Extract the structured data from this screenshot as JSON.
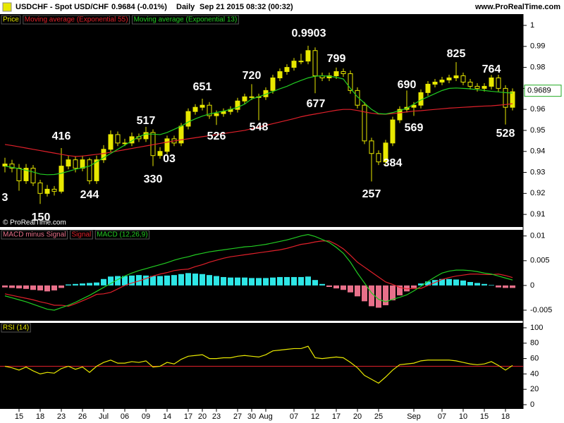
{
  "header": {
    "symbol": "USDCHF - Spot USD/CHF",
    "quote": "0.9684 (-0.01%)",
    "period": "Daily",
    "time": "Sep 21 2015 08:32 (00:32)",
    "site": "www.ProRealTime.com",
    "copyright": "© ProRealTime.com"
  },
  "chart_data": [
    {
      "type": "candlestick",
      "categories": [
        null,
        null,
        "15",
        null,
        null,
        "18",
        null,
        null,
        "23",
        null,
        null,
        "26",
        null,
        null,
        "Jul",
        null,
        null,
        "06",
        null,
        null,
        "09",
        null,
        null,
        "14",
        null,
        null,
        "17",
        null,
        "20",
        null,
        "23",
        null,
        null,
        "27",
        null,
        "30",
        null,
        "Aug",
        null,
        null,
        null,
        "07",
        null,
        null,
        "12",
        null,
        null,
        "17",
        null,
        null,
        "20",
        null,
        null,
        "25",
        null,
        null,
        null,
        null,
        "Sep",
        null,
        null,
        null,
        "07",
        null,
        null,
        "10",
        null,
        null,
        "15",
        null,
        null,
        "18",
        null
      ],
      "candles": {
        "name": "Price",
        "color": "#e8e800",
        "ohlc": [
          [
            0.933,
            0.937,
            0.93,
            0.934
          ],
          [
            0.934,
            0.936,
            0.93,
            0.932
          ],
          [
            0.932,
            0.934,
            0.9213,
            0.926
          ],
          [
            0.926,
            0.934,
            0.9245,
            0.932
          ],
          [
            0.932,
            0.9335,
            0.9235,
            0.925
          ],
          [
            0.925,
            0.9265,
            0.915,
            0.92
          ],
          [
            0.92,
            0.924,
            0.9185,
            0.922
          ],
          [
            0.922,
            0.9235,
            0.919,
            0.921
          ],
          [
            0.921,
            0.9416,
            0.92,
            0.933
          ],
          [
            0.933,
            0.938,
            0.9315,
            0.936
          ],
          [
            0.936,
            0.9375,
            0.93,
            0.932
          ],
          [
            0.932,
            0.938,
            0.9305,
            0.936
          ],
          [
            0.936,
            0.937,
            0.9244,
            0.926
          ],
          [
            0.926,
            0.938,
            0.9245,
            0.936
          ],
          [
            0.936,
            0.943,
            0.9345,
            0.941
          ],
          [
            0.941,
            0.95,
            0.9395,
            0.948
          ],
          [
            0.948,
            0.9495,
            0.9425,
            0.944
          ],
          [
            0.944,
            0.946,
            0.9425,
            0.944
          ],
          [
            0.944,
            0.949,
            0.9425,
            0.947
          ],
          [
            0.947,
            0.9485,
            0.9445,
            0.946
          ],
          [
            0.946,
            0.9517,
            0.9445,
            0.949
          ],
          [
            0.949,
            0.9505,
            0.933,
            0.938
          ],
          [
            0.938,
            0.942,
            0.9365,
            0.94
          ],
          [
            0.94,
            0.9475,
            0.9385,
            0.946
          ],
          [
            0.946,
            0.9475,
            0.9425,
            0.944
          ],
          [
            0.944,
            0.9535,
            0.9425,
            0.952
          ],
          [
            0.952,
            0.9605,
            0.9505,
            0.959
          ],
          [
            0.959,
            0.9625,
            0.9575,
            0.961
          ],
          [
            0.961,
            0.9651,
            0.9595,
            0.962
          ],
          [
            0.962,
            0.9635,
            0.9555,
            0.957
          ],
          [
            0.957,
            0.9595,
            0.9526,
            0.958
          ],
          [
            0.958,
            0.9605,
            0.9565,
            0.959
          ],
          [
            0.959,
            0.9615,
            0.9575,
            0.96
          ],
          [
            0.96,
            0.9655,
            0.9585,
            0.964
          ],
          [
            0.964,
            0.9675,
            0.9625,
            0.966
          ],
          [
            0.966,
            0.972,
            0.9645,
            0.966
          ],
          [
            0.966,
            0.9675,
            0.9548,
            0.966
          ],
          [
            0.966,
            0.9705,
            0.9645,
            0.969
          ],
          [
            0.969,
            0.9765,
            0.9675,
            0.975
          ],
          [
            0.975,
            0.9795,
            0.9735,
            0.978
          ],
          [
            0.978,
            0.9815,
            0.9765,
            0.98
          ],
          [
            0.98,
            0.9845,
            0.9785,
            0.983
          ],
          [
            0.983,
            0.9865,
            0.9815,
            0.983
          ],
          [
            0.983,
            0.9903,
            0.9815,
            0.988
          ],
          [
            0.988,
            0.9895,
            0.9677,
            0.976
          ],
          [
            0.976,
            0.9775,
            0.9735,
            0.975
          ],
          [
            0.975,
            0.9775,
            0.9735,
            0.976
          ],
          [
            0.976,
            0.9799,
            0.9745,
            0.978
          ],
          [
            0.978,
            0.9795,
            0.9755,
            0.977
          ],
          [
            0.977,
            0.9785,
            0.9675,
            0.969
          ],
          [
            0.969,
            0.9705,
            0.9605,
            0.962
          ],
          [
            0.962,
            0.9635,
            0.9435,
            0.945
          ],
          [
            0.945,
            0.9465,
            0.9257,
            0.939
          ],
          [
            0.939,
            0.9405,
            0.9335,
            0.935
          ],
          [
            0.935,
            0.9455,
            0.9335,
            0.944
          ],
          [
            0.944,
            0.9565,
            0.9425,
            0.955
          ],
          [
            0.955,
            0.9615,
            0.9535,
            0.96
          ],
          [
            0.96,
            0.969,
            0.9585,
            0.961
          ],
          [
            0.961,
            0.9635,
            0.9569,
            0.962
          ],
          [
            0.962,
            0.9695,
            0.9605,
            0.968
          ],
          [
            0.968,
            0.9735,
            0.9665,
            0.972
          ],
          [
            0.972,
            0.9745,
            0.9705,
            0.973
          ],
          [
            0.973,
            0.9755,
            0.9715,
            0.974
          ],
          [
            0.974,
            0.9765,
            0.9725,
            0.975
          ],
          [
            0.975,
            0.9825,
            0.9735,
            0.976
          ],
          [
            0.976,
            0.9775,
            0.9715,
            0.973
          ],
          [
            0.973,
            0.9745,
            0.9695,
            0.971
          ],
          [
            0.971,
            0.9725,
            0.9685,
            0.97
          ],
          [
            0.97,
            0.9725,
            0.9685,
            0.971
          ],
          [
            0.971,
            0.9764,
            0.9695,
            0.975
          ],
          [
            0.975,
            0.9765,
            0.9685,
            0.97
          ],
          [
            0.97,
            0.9715,
            0.9528,
            0.961
          ],
          [
            0.961,
            0.97,
            0.9595,
            0.9684
          ]
        ]
      },
      "series": [
        {
          "name": "Moving average (Exponential 55)",
          "color": "#e0202a",
          "values": [
            0.9433,
            0.9428,
            0.9422,
            0.9416,
            0.941,
            0.9404,
            0.9398,
            0.9392,
            0.9386,
            0.938,
            0.9376,
            0.9378,
            0.9382,
            0.9386,
            0.939,
            0.9396,
            0.9402,
            0.9408,
            0.9414,
            0.942,
            0.9426,
            0.9432,
            0.9438,
            0.9444,
            0.945,
            0.9455,
            0.946,
            0.9465,
            0.947,
            0.9475,
            0.948,
            0.9485,
            0.949,
            0.9495,
            0.95,
            0.9508,
            0.9516,
            0.9524,
            0.9532,
            0.954,
            0.9548,
            0.9556,
            0.9565,
            0.9572,
            0.9578,
            0.9584,
            0.959,
            0.9596,
            0.96,
            0.96,
            0.9595,
            0.9588,
            0.9582,
            0.9578,
            0.9577,
            0.958,
            0.9584,
            0.9588,
            0.9592,
            0.9594,
            0.9597,
            0.96,
            0.9603,
            0.9606,
            0.9608,
            0.961,
            0.9612,
            0.9614,
            0.9616,
            0.9617,
            0.962,
            0.9623,
            0.9627
          ]
        },
        {
          "name": "Moving average (Exponential 13)",
          "color": "#22cc22",
          "values": [
            0.933,
            0.9324,
            0.9318,
            0.931,
            0.9302,
            0.9292,
            0.9289,
            0.929,
            0.9296,
            0.9305,
            0.9315,
            0.9322,
            0.933,
            0.935,
            0.937,
            0.939,
            0.941,
            0.943,
            0.945,
            0.947,
            0.9483,
            0.9482,
            0.948,
            0.949,
            0.9505,
            0.952,
            0.954,
            0.9555,
            0.9568,
            0.9578,
            0.9585,
            0.9592,
            0.96,
            0.961,
            0.9625,
            0.965,
            0.966,
            0.9672,
            0.9685,
            0.9698,
            0.971,
            0.9725,
            0.9738,
            0.975,
            0.9758,
            0.976,
            0.9758,
            0.9753,
            0.9745,
            0.97,
            0.966,
            0.963,
            0.96,
            0.958,
            0.9578,
            0.9585,
            0.9595,
            0.9605,
            0.9625,
            0.9645,
            0.966,
            0.9675,
            0.969,
            0.97,
            0.9702,
            0.97,
            0.9698,
            0.9694,
            0.969,
            0.9686,
            0.9683,
            0.968,
            0.9678
          ]
        }
      ],
      "annotations": [
        "3",
        "150",
        "416",
        "244",
        "517",
        "330",
        "03",
        "651",
        "526",
        "720",
        "548",
        "0.9903",
        "677",
        "799",
        "257",
        "384",
        "690",
        "569",
        "825",
        "764",
        "528"
      ],
      "last_price": 0.9689,
      "ylim": [
        0.904,
        1.0037
      ],
      "yticks": [
        1,
        0.99,
        0.98,
        0.97,
        0.96,
        0.95,
        0.94,
        0.93,
        0.92,
        0.91
      ]
    },
    {
      "type": "combo",
      "series": [
        {
          "name": "MACD minus Signal",
          "type": "bar",
          "color": "#e8708a",
          "positive_color": "#2ee6e6",
          "negative_color": "#e8708a",
          "values": [
            -0.0004,
            -0.0005,
            -0.0006,
            -0.0007,
            -0.0009,
            -0.001,
            -0.0012,
            -0.001,
            -0.0005,
            0.0002,
            0.0003,
            0.0004,
            0.0005,
            0.0006,
            0.0013,
            0.0018,
            0.0019,
            0.0019,
            0.002,
            0.0021,
            0.002,
            0.0019,
            0.0019,
            0.002,
            0.0021,
            0.0023,
            0.0025,
            0.0024,
            0.0023,
            0.0021,
            0.0019,
            0.0017,
            0.0016,
            0.0016,
            0.0016,
            0.0015,
            0.0015,
            0.0015,
            0.0016,
            0.0017,
            0.0017,
            0.0017,
            0.0017,
            0.0018,
            0.0011,
            0.0003,
            -0.0003,
            -0.0006,
            -0.0009,
            -0.0014,
            -0.0022,
            -0.0032,
            -0.0042,
            -0.0045,
            -0.004,
            -0.003,
            -0.002,
            -0.0012,
            -0.0005,
            0.0004,
            0.0008,
            0.0011,
            0.0013,
            0.0013,
            0.0012,
            0.001,
            0.0007,
            0.0005,
            0.0003,
            0.0001,
            -0.0004,
            -0.0005,
            -0.0005
          ]
        },
        {
          "name": "Signal",
          "type": "line",
          "color": "#e0202a",
          "values": [
            -0.0017,
            -0.002,
            -0.0023,
            -0.0026,
            -0.0029,
            -0.0033,
            -0.0036,
            -0.004,
            -0.004,
            -0.0042,
            -0.0037,
            -0.0031,
            -0.0025,
            -0.0018,
            -0.0017,
            -0.0014,
            -0.0007,
            0,
            0.0005,
            0.0009,
            0.0014,
            0.0019,
            0.0023,
            0.0026,
            0.003,
            0.0032,
            0.0033,
            0.0038,
            0.0042,
            0.0047,
            0.0051,
            0.0055,
            0.0058,
            0.006,
            0.0062,
            0.0064,
            0.0066,
            0.0068,
            0.007,
            0.0072,
            0.0075,
            0.0079,
            0.0083,
            0.0085,
            0.0088,
            0.009,
            0.009,
            0.0083,
            0.0074,
            0.0061,
            0.0047,
            0.0037,
            0.0027,
            0.0017,
            0.0007,
            0.0002,
            -0.0004,
            -0.0007,
            -0.0006,
            -0.0006,
            0,
            0.0006,
            0.0012,
            0.0016,
            0.0019,
            0.0021,
            0.0023,
            0.0023,
            0.0022,
            0.0022,
            0.0023,
            0.002,
            0.0016
          ]
        },
        {
          "name": "MACD (12,26,9)",
          "type": "line",
          "color": "#22cc22",
          "values": [
            -0.0021,
            -0.0025,
            -0.0029,
            -0.0033,
            -0.0038,
            -0.0043,
            -0.0048,
            -0.005,
            -0.0045,
            -0.004,
            -0.0034,
            -0.0027,
            -0.002,
            -0.0012,
            -0.0004,
            0.0004,
            0.0012,
            0.0019,
            0.0025,
            0.003,
            0.0034,
            0.0038,
            0.0042,
            0.0046,
            0.0051,
            0.0055,
            0.0058,
            0.0062,
            0.0065,
            0.0068,
            0.007,
            0.0072,
            0.0074,
            0.0076,
            0.0078,
            0.0079,
            0.0081,
            0.0083,
            0.0086,
            0.0089,
            0.0092,
            0.0096,
            0.01,
            0.0103,
            0.0099,
            0.0093,
            0.0087,
            0.0077,
            0.0065,
            0.0047,
            0.0025,
            0.0005,
            -0.0015,
            -0.0028,
            -0.0033,
            -0.0028,
            -0.0024,
            -0.0019,
            -0.0011,
            -0.0002,
            0.0008,
            0.0017,
            0.0025,
            0.0029,
            0.0031,
            0.0031,
            0.003,
            0.0028,
            0.0025,
            0.0023,
            0.0019,
            0.0015,
            0.0011
          ]
        }
      ],
      "ylim": [
        -0.00714,
        0.0111
      ],
      "yticks": [
        0.01,
        0.005,
        0,
        -0.005
      ]
    },
    {
      "type": "line",
      "series": [
        {
          "name": "RSI (14)",
          "color": "#e8e800",
          "values": [
            50,
            48,
            45,
            49,
            44,
            40,
            42,
            41,
            47,
            50,
            46,
            49,
            42,
            50,
            55,
            58,
            54,
            54,
            56,
            55,
            57,
            49,
            50,
            55,
            53,
            59,
            63,
            64,
            65,
            60,
            60,
            61,
            61,
            63,
            64,
            63,
            62,
            65,
            70,
            71,
            72,
            73,
            73,
            76,
            61,
            60,
            61,
            62,
            61,
            55,
            48,
            38,
            33,
            28,
            36,
            45,
            52,
            53,
            54,
            57,
            58,
            58,
            58,
            58,
            57,
            55,
            53,
            52,
            53,
            56,
            51,
            45,
            51
          ]
        }
      ],
      "reference_line": {
        "value": 50,
        "color": "#e0202a"
      },
      "ylim": [
        -5.5,
        106.4
      ],
      "yticks": [
        100,
        80,
        60,
        40,
        20,
        0
      ]
    }
  ]
}
